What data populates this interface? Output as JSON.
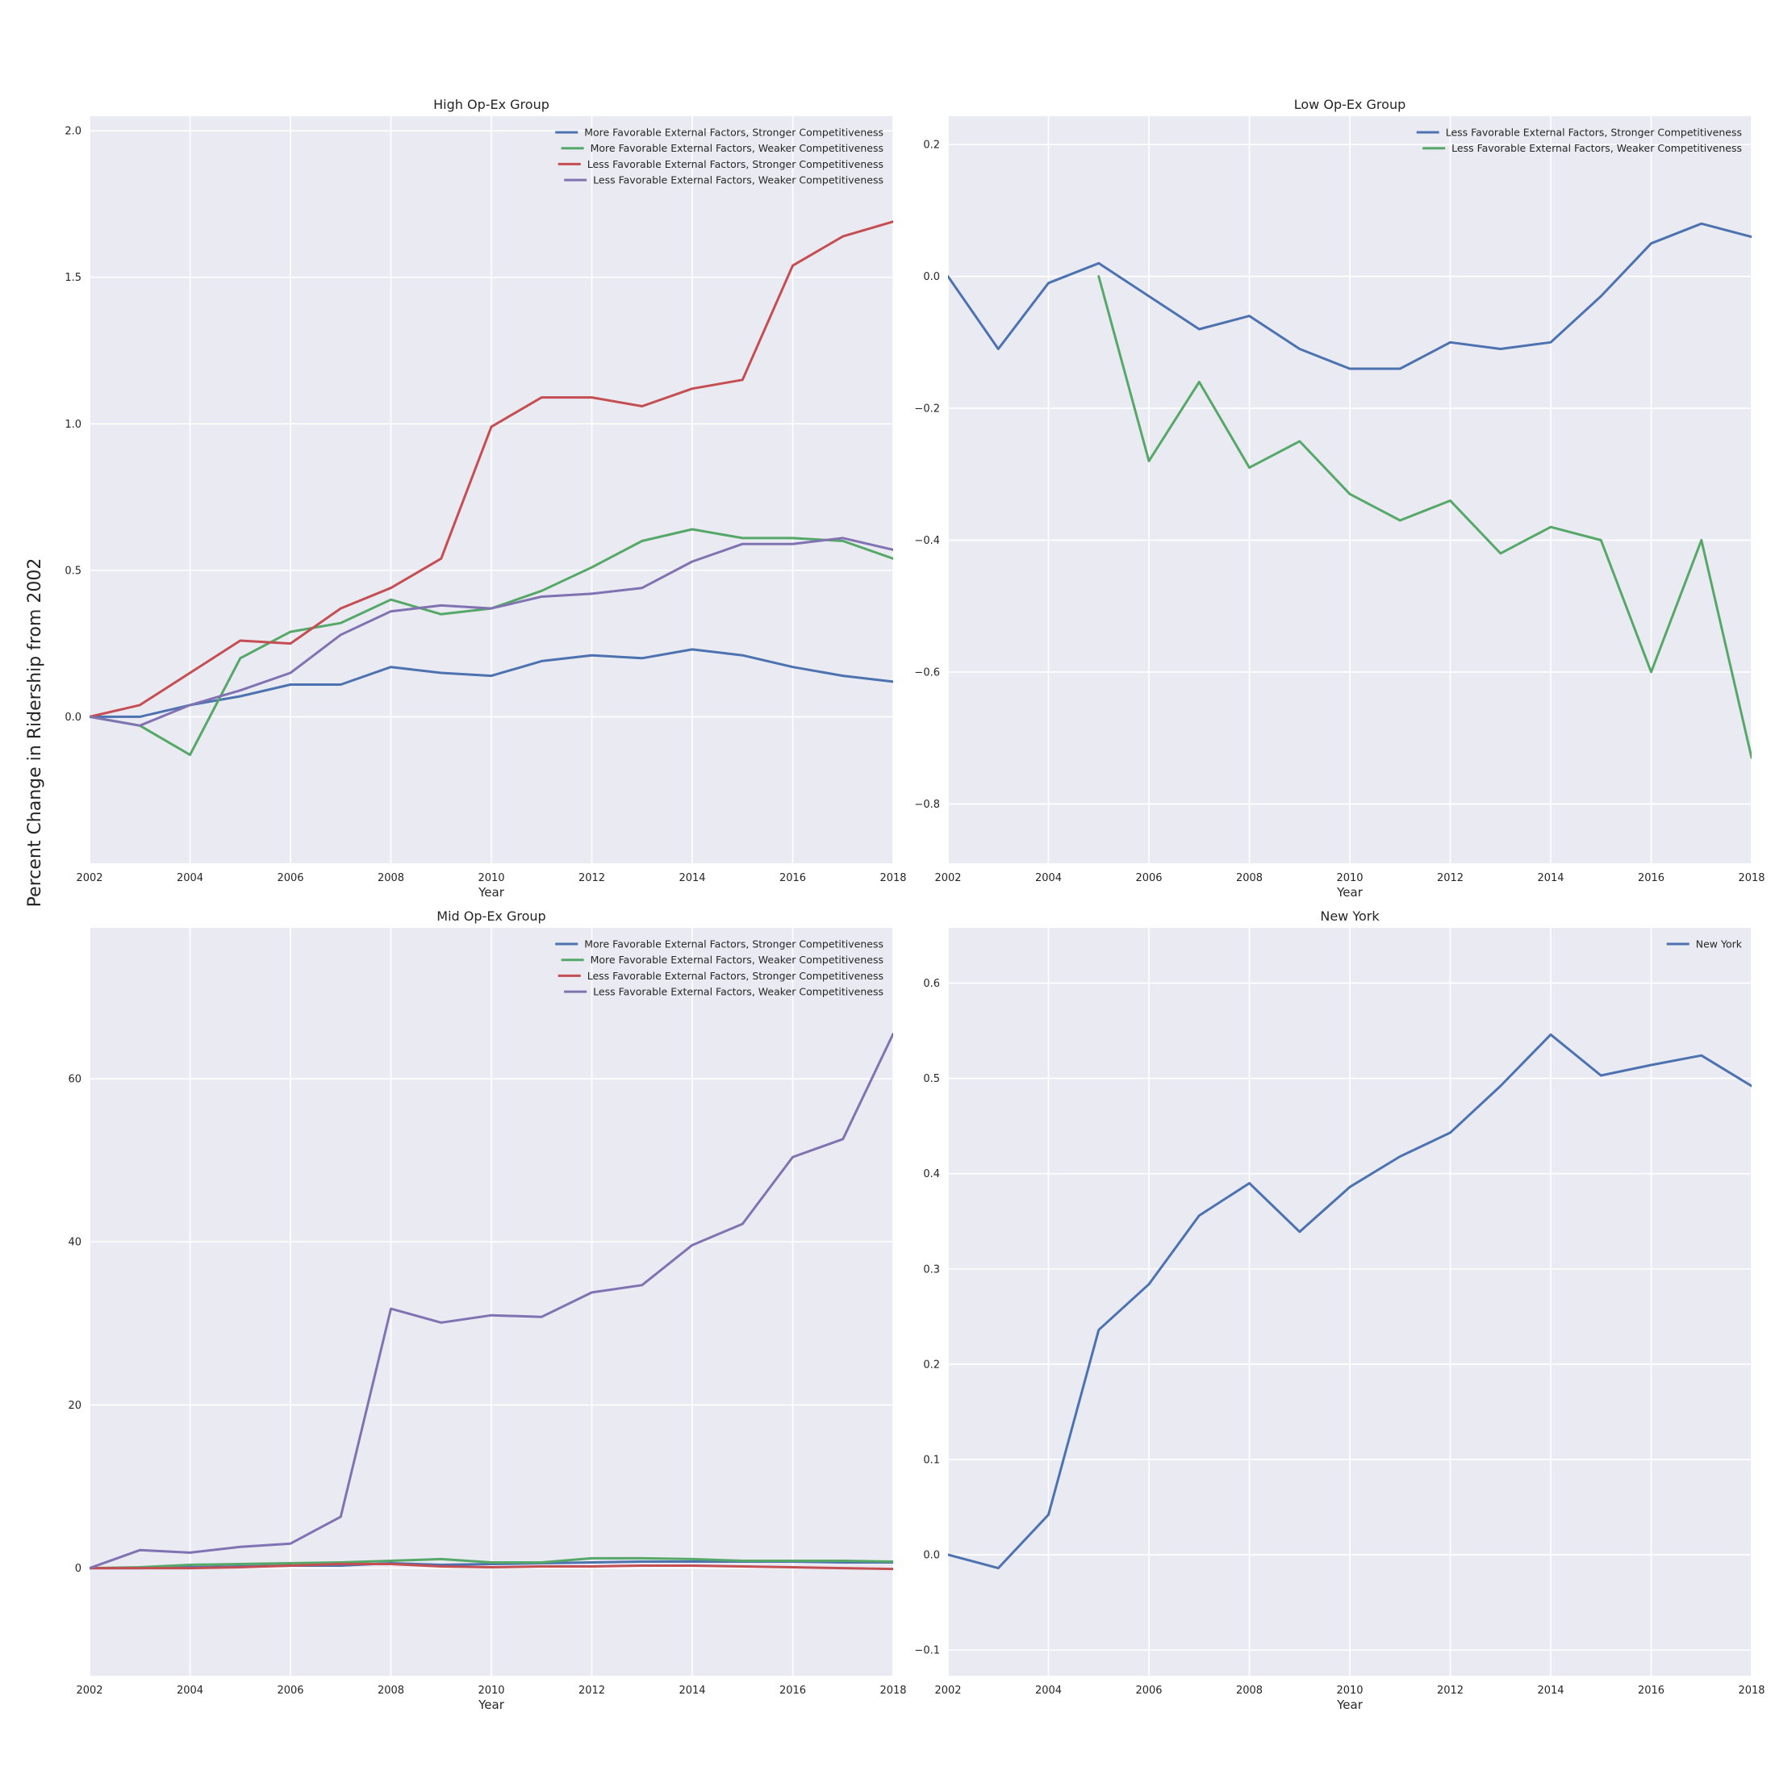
{
  "figure": {
    "ylabel": "Percent Change in Ridership from 2002"
  },
  "colors": {
    "blue": "#4c72b0",
    "green": "#55a868",
    "red": "#c44e52",
    "purple": "#8172b2"
  },
  "chart_data": [
    {
      "type": "line",
      "title": "High Op-Ex Group",
      "xlabel": "Year",
      "ylabel": "",
      "x": [
        2002,
        2003,
        2004,
        2005,
        2006,
        2007,
        2008,
        2009,
        2010,
        2011,
        2012,
        2013,
        2014,
        2015,
        2016,
        2017,
        2018
      ],
      "xlim": [
        2002,
        2018
      ],
      "ylim": [
        -0.5,
        2.05
      ],
      "xticks": [
        2002,
        2004,
        2006,
        2008,
        2010,
        2012,
        2014,
        2016,
        2018
      ],
      "yticks": [
        0.0,
        0.5,
        1.0,
        1.5,
        2.0
      ],
      "ytick_labels": [
        "0.0",
        "0.5",
        "1.0",
        "1.5",
        "2.0"
      ],
      "grid": true,
      "legend_position": "top-right",
      "series": [
        {
          "name": "More Favorable External Factors, Stronger Competitiveness",
          "color": "#4c72b0",
          "values": [
            0.0,
            0.0,
            0.04,
            0.07,
            0.11,
            0.11,
            0.17,
            0.15,
            0.14,
            0.19,
            0.21,
            0.2,
            0.23,
            0.21,
            0.17,
            0.14,
            0.12
          ]
        },
        {
          "name": "More Favorable External Factors, Weaker Competitiveness",
          "color": "#55a868",
          "values": [
            0.0,
            -0.03,
            -0.13,
            0.2,
            0.29,
            0.32,
            0.4,
            0.35,
            0.37,
            0.43,
            0.51,
            0.6,
            0.64,
            0.61,
            0.61,
            0.6,
            0.54
          ]
        },
        {
          "name": "Less Favorable External Factors, Stronger Competitiveness",
          "color": "#c44e52",
          "values": [
            0.0,
            0.04,
            0.15,
            0.26,
            0.25,
            0.37,
            0.44,
            0.54,
            0.99,
            1.09,
            1.09,
            1.06,
            1.12,
            1.15,
            1.54,
            1.64,
            1.69
          ]
        },
        {
          "name": "Less Favorable External Factors, Weaker Competitiveness",
          "color": "#8172b2",
          "values": [
            0.0,
            -0.03,
            0.04,
            0.09,
            0.15,
            0.28,
            0.36,
            0.38,
            0.37,
            0.41,
            0.42,
            0.44,
            0.53,
            0.59,
            0.59,
            0.61,
            0.57
          ]
        }
      ]
    },
    {
      "type": "line",
      "title": "Low Op-Ex Group",
      "xlabel": "Year",
      "ylabel": "",
      "x": [
        2002,
        2003,
        2004,
        2005,
        2006,
        2007,
        2008,
        2009,
        2010,
        2011,
        2012,
        2013,
        2014,
        2015,
        2016,
        2017,
        2018
      ],
      "xlim": [
        2002,
        2018
      ],
      "ylim": [
        -0.89,
        0.243
      ],
      "xticks": [
        2002,
        2004,
        2006,
        2008,
        2010,
        2012,
        2014,
        2016,
        2018
      ],
      "yticks": [
        -0.8,
        -0.6,
        -0.4,
        -0.2,
        0.0,
        0.2
      ],
      "ytick_labels": [
        "−0.8",
        "−0.6",
        "−0.4",
        "−0.2",
        "0.0",
        "0.2"
      ],
      "grid": true,
      "legend_position": "top-right",
      "series": [
        {
          "name": "Less Favorable External Factors, Stronger Competitiveness",
          "color": "#4c72b0",
          "values": [
            0.0,
            -0.11,
            -0.01,
            0.02,
            -0.03,
            -0.08,
            -0.06,
            -0.11,
            -0.14,
            -0.14,
            -0.1,
            -0.11,
            -0.1,
            -0.03,
            0.05,
            0.08,
            0.06
          ]
        },
        {
          "name": "Less Favorable External Factors, Weaker Competitiveness",
          "color": "#55a868",
          "values": [
            null,
            null,
            null,
            0.0,
            -0.28,
            -0.16,
            -0.29,
            -0.25,
            -0.33,
            -0.37,
            -0.34,
            -0.42,
            -0.38,
            -0.4,
            -0.6,
            -0.4,
            -0.73
          ]
        }
      ]
    },
    {
      "type": "line",
      "title": "Mid Op-Ex Group",
      "xlabel": "Year",
      "ylabel": "",
      "x": [
        2002,
        2003,
        2004,
        2005,
        2006,
        2007,
        2008,
        2009,
        2010,
        2011,
        2012,
        2013,
        2014,
        2015,
        2016,
        2017,
        2018
      ],
      "xlim": [
        2002,
        2018
      ],
      "ylim": [
        -13.2,
        78.5
      ],
      "xticks": [
        2002,
        2004,
        2006,
        2008,
        2010,
        2012,
        2014,
        2016,
        2018
      ],
      "yticks": [
        0,
        20,
        40,
        60
      ],
      "ytick_labels": [
        "0",
        "20",
        "40",
        "60"
      ],
      "grid": true,
      "legend_position": "top-right",
      "series": [
        {
          "name": "More Favorable External Factors, Stronger Competitiveness",
          "color": "#4c72b0",
          "values": [
            0.0,
            0.0,
            0.1,
            0.2,
            0.3,
            0.3,
            0.6,
            0.4,
            0.5,
            0.6,
            0.7,
            0.8,
            0.8,
            0.8,
            0.8,
            0.7,
            0.7
          ]
        },
        {
          "name": "More Favorable External Factors, Weaker Competitiveness",
          "color": "#55a868",
          "values": [
            0.0,
            0.1,
            0.4,
            0.5,
            0.6,
            0.7,
            0.9,
            1.1,
            0.7,
            0.7,
            1.2,
            1.2,
            1.1,
            0.9,
            0.9,
            0.9,
            0.8
          ]
        },
        {
          "name": "Less Favorable External Factors, Stronger Competitiveness",
          "color": "#c44e52",
          "values": [
            0.0,
            0.0,
            0.0,
            0.1,
            0.3,
            0.5,
            0.5,
            0.2,
            0.1,
            0.2,
            0.2,
            0.3,
            0.3,
            0.2,
            0.1,
            0.0,
            -0.1
          ]
        },
        {
          "name": "Less Favorable External Factors, Weaker Competitiveness",
          "color": "#8172b2",
          "values": [
            0.0,
            2.2,
            1.9,
            2.6,
            3.0,
            6.3,
            31.8,
            30.1,
            31.0,
            30.8,
            33.8,
            34.7,
            39.6,
            42.2,
            50.4,
            52.6,
            65.5
          ]
        }
      ]
    },
    {
      "type": "line",
      "title": "New York",
      "xlabel": "Year",
      "ylabel": "",
      "x": [
        2002,
        2003,
        2004,
        2005,
        2006,
        2007,
        2008,
        2009,
        2010,
        2011,
        2012,
        2013,
        2014,
        2015,
        2016,
        2017,
        2018
      ],
      "xlim": [
        2002,
        2018
      ],
      "ylim": [
        -0.127,
        0.658
      ],
      "xticks": [
        2002,
        2004,
        2006,
        2008,
        2010,
        2012,
        2014,
        2016,
        2018
      ],
      "yticks": [
        -0.1,
        0.0,
        0.1,
        0.2,
        0.3,
        0.4,
        0.5,
        0.6
      ],
      "ytick_labels": [
        "−0.1",
        "0.0",
        "0.1",
        "0.2",
        "0.3",
        "0.4",
        "0.5",
        "0.6"
      ],
      "grid": true,
      "legend_position": "top-right",
      "series": [
        {
          "name": "New York",
          "color": "#4c72b0",
          "values": [
            0.0,
            -0.014,
            0.042,
            0.236,
            0.284,
            0.356,
            0.39,
            0.339,
            0.386,
            0.418,
            0.443,
            0.492,
            0.546,
            0.503,
            0.514,
            0.524,
            0.492
          ]
        }
      ]
    }
  ]
}
